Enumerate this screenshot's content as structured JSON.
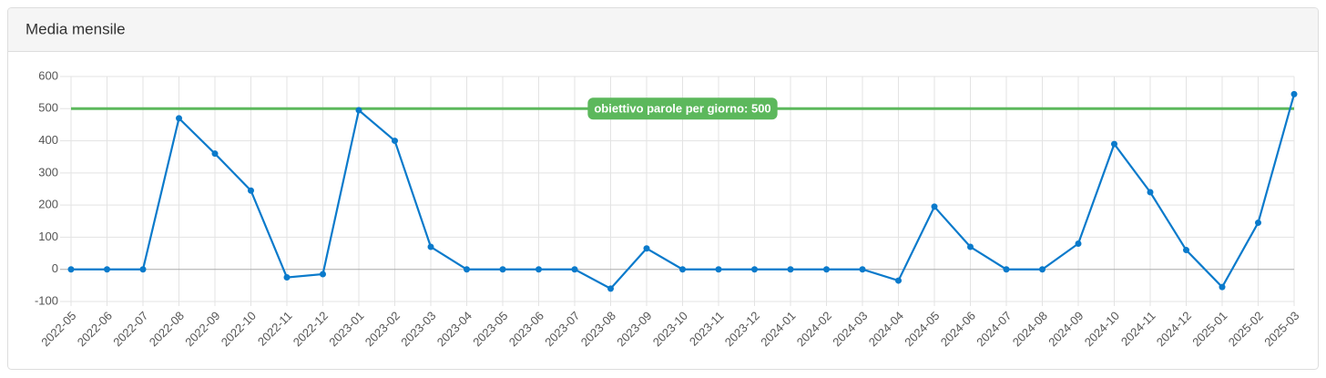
{
  "chart_data": {
    "type": "line",
    "title": "Media mensile",
    "categories": [
      "2022-05",
      "2022-06",
      "2022-07",
      "2022-08",
      "2022-09",
      "2022-10",
      "2022-11",
      "2022-12",
      "2023-01",
      "2023-02",
      "2023-03",
      "2023-04",
      "2023-05",
      "2023-06",
      "2023-07",
      "2023-08",
      "2023-09",
      "2023-10",
      "2023-11",
      "2023-12",
      "2024-01",
      "2024-02",
      "2024-03",
      "2024-04",
      "2024-05",
      "2024-06",
      "2024-07",
      "2024-08",
      "2024-09",
      "2024-10",
      "2024-11",
      "2024-12",
      "2025-01",
      "2025-02",
      "2025-03"
    ],
    "values": [
      0,
      0,
      0,
      470,
      360,
      245,
      -25,
      -15,
      495,
      400,
      70,
      0,
      0,
      0,
      0,
      -60,
      65,
      0,
      0,
      0,
      0,
      0,
      0,
      -35,
      195,
      70,
      0,
      0,
      80,
      390,
      240,
      60,
      -55,
      145,
      545
    ],
    "color": "#0a7acb",
    "ylim": [
      -100,
      600
    ],
    "yticks": [
      -100,
      0,
      100,
      200,
      300,
      400,
      500,
      600
    ],
    "grid": true,
    "annotation": {
      "value": 500,
      "label": "obiettivo parole per giorno: 500",
      "color": "#5cb85c"
    }
  }
}
